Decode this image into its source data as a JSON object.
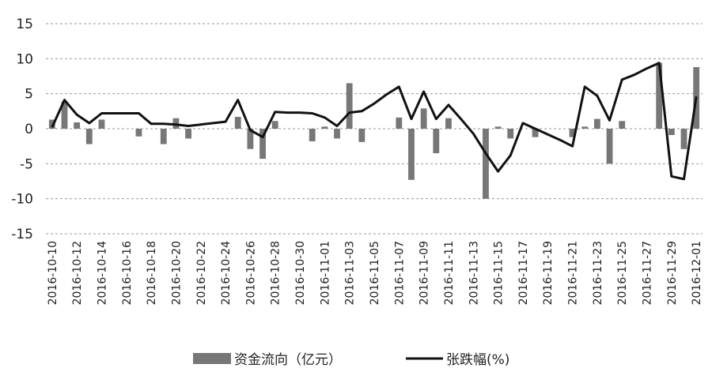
{
  "chart_data": {
    "type": "bar+line",
    "title": "",
    "xlabel": "",
    "ylabel": "",
    "ylim": [
      -15,
      15
    ],
    "yticks": [
      15,
      10,
      5,
      0,
      -5,
      -10,
      -15
    ],
    "grid": true,
    "legend_position": "bottom",
    "x": [
      "2016-10-10",
      "2016-10-11",
      "2016-10-12",
      "2016-10-13",
      "2016-10-14",
      "2016-10-15",
      "2016-10-16",
      "2016-10-17",
      "2016-10-18",
      "2016-10-19",
      "2016-10-20",
      "2016-10-21",
      "2016-10-22",
      "2016-10-23",
      "2016-10-24",
      "2016-10-25",
      "2016-10-26",
      "2016-10-27",
      "2016-10-28",
      "2016-10-29",
      "2016-10-30",
      "2016-10-31",
      "2016-11-01",
      "2016-11-02",
      "2016-11-03",
      "2016-11-04",
      "2016-11-05",
      "2016-11-06",
      "2016-11-07",
      "2016-11-08",
      "2016-11-09",
      "2016-11-10",
      "2016-11-11",
      "2016-11-12",
      "2016-11-13",
      "2016-11-14",
      "2016-11-15",
      "2016-11-16",
      "2016-11-17",
      "2016-11-18",
      "2016-11-19",
      "2016-11-20",
      "2016-11-21",
      "2016-11-22",
      "2016-11-23",
      "2016-11-24",
      "2016-11-25",
      "2016-11-26",
      "2016-11-27",
      "2016-11-28",
      "2016-11-29",
      "2016-11-30",
      "2016-12-01"
    ],
    "xticks": [
      "2016-10-10",
      "2016-10-12",
      "2016-10-14",
      "2016-10-16",
      "2016-10-18",
      "2016-10-20",
      "2016-10-22",
      "2016-10-24",
      "2016-10-26",
      "2016-10-28",
      "2016-10-30",
      "2016-11-01",
      "2016-11-03",
      "2016-11-05",
      "2016-11-07",
      "2016-11-09",
      "2016-11-11",
      "2016-11-13",
      "2016-11-15",
      "2016-11-17",
      "2016-11-19",
      "2016-11-21",
      "2016-11-23",
      "2016-11-25",
      "2016-11-27",
      "2016-11-29",
      "2016-12-01"
    ],
    "series": [
      {
        "name": "资金流向（亿元）",
        "kind": "bar",
        "color": "#777777",
        "values": [
          1.3,
          3.9,
          0.9,
          -2.2,
          1.3,
          0,
          0,
          -1.1,
          0,
          -2.2,
          1.5,
          -1.4,
          0,
          0,
          0,
          1.7,
          -2.9,
          -4.3,
          1.1,
          0,
          0,
          -1.8,
          0.3,
          -1.4,
          6.5,
          -1.9,
          0,
          0,
          1.6,
          -7.3,
          2.9,
          -3.5,
          1.5,
          0,
          0,
          -10.0,
          0.3,
          -1.4,
          0,
          -1.2,
          0,
          0,
          -1.2,
          0.3,
          1.4,
          -5.0,
          1.1,
          0,
          0,
          9.4,
          -0.9,
          -2.9,
          8.8
        ]
      },
      {
        "name": "张跌幅(%)",
        "kind": "line",
        "color": "#111111",
        "values": [
          0.2,
          4.1,
          2.0,
          0.8,
          2.2,
          2.2,
          2.2,
          2.2,
          0.7,
          0.7,
          0.6,
          0.4,
          0.6,
          0.8,
          1.0,
          4.1,
          -0.2,
          -1.2,
          2.4,
          2.3,
          2.3,
          2.2,
          1.6,
          0.4,
          2.3,
          2.5,
          3.6,
          4.9,
          6.0,
          1.4,
          5.3,
          1.4,
          3.4,
          1.4,
          -0.7,
          -3.5,
          -6.1,
          -3.8,
          0.8,
          0.0,
          -0.8,
          -1.6,
          -2.5,
          6.0,
          4.7,
          1.2,
          7.0,
          7.7,
          8.6,
          9.4,
          -6.8,
          -7.2,
          4.6
        ]
      }
    ]
  },
  "legend": {
    "bar_label": "资金流向（亿元）",
    "line_label": "张跌幅(%)"
  }
}
